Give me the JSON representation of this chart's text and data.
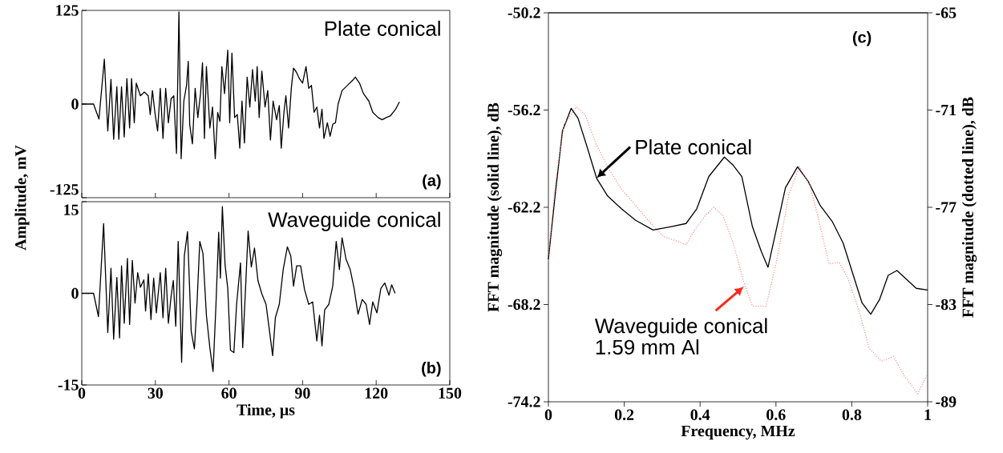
{
  "chart_data": [
    {
      "type": "line",
      "xlim": [
        0,
        150
      ],
      "xticks": [
        0,
        30,
        60,
        90,
        120,
        150
      ],
      "ylim": [
        -125,
        125
      ],
      "yticks": [
        -125,
        0,
        125
      ],
      "ylabel": "Amplitude, mV",
      "tick_labels": "y",
      "annotations": [
        "Plate conical",
        "(a)"
      ],
      "series": [
        {
          "color": "#000000",
          "x": [
            0,
            4.8,
            7.0,
            9.2,
            10.6,
            11.9,
            13.0,
            14.3,
            15.1,
            16.2,
            17.3,
            18.4,
            19.5,
            20.3,
            21.4,
            22.2,
            23.9,
            25.5,
            27.1,
            27.9,
            28.8,
            29.8,
            30.9,
            32.0,
            33.1,
            34.2,
            35.3,
            36.4,
            37.5,
            38.6,
            39.6,
            40.5,
            41.6,
            42.7,
            43.4,
            44.0,
            45.1,
            46.2,
            47.3,
            48.4,
            49.2,
            50.0,
            50.8,
            52.2,
            53.3,
            54.4,
            55.4,
            56.3,
            57.1,
            58.2,
            59.5,
            60.3,
            61.2,
            62.3,
            63.4,
            64.4,
            65.3,
            66.3,
            67.4,
            68.5,
            69.6,
            70.7,
            71.5,
            72.3,
            73.4,
            74.7,
            75.8,
            76.9,
            78.0,
            79.4,
            80.5,
            81.3,
            82.4,
            83.2,
            84.3,
            85.4,
            86.3,
            87.4,
            88.7,
            90.0,
            91.4,
            92.5,
            93.6,
            94.7,
            95.8,
            96.9,
            97.9,
            98.7,
            100.1,
            101.2,
            102.3,
            103.4,
            104.5,
            106.1,
            108.3,
            110.5,
            111.5,
            113.2,
            114.8,
            117.0,
            118.6,
            120.8,
            122.4,
            124.1,
            125.7,
            127.9,
            129.5
          ],
          "values": [
            0,
            0,
            -20,
            60,
            -36,
            33,
            -47,
            23,
            -47,
            23,
            -44,
            34,
            -32,
            34,
            -25,
            28,
            11,
            16,
            11,
            -14,
            18,
            -11,
            -36,
            21,
            -46,
            21,
            -25,
            7,
            11,
            -66,
            123,
            -73,
            4,
            25,
            57,
            -28,
            -53,
            21,
            -18,
            14,
            55,
            -46,
            50,
            -32,
            -4,
            -73,
            -11,
            -23,
            50,
            14,
            72,
            -25,
            68,
            -18,
            -14,
            -59,
            4,
            -52,
            36,
            -4,
            46,
            4,
            50,
            -18,
            44,
            -4,
            18,
            -48,
            4,
            -21,
            -2,
            -59,
            -11,
            11,
            -32,
            21,
            48,
            43,
            34,
            28,
            50,
            21,
            25,
            -11,
            -4,
            -32,
            -7,
            -46,
            -25,
            -43,
            -27,
            -25,
            0,
            18,
            25,
            32,
            36,
            28,
            14,
            4,
            -11,
            -18,
            -21,
            -18,
            -16,
            -7,
            3
          ]
        }
      ]
    },
    {
      "type": "line",
      "xlim": [
        0,
        150
      ],
      "xticks": [
        0,
        30,
        60,
        90,
        120,
        150
      ],
      "ylim": [
        -15,
        15
      ],
      "yticks": [
        -15,
        0,
        15
      ],
      "xlabel": "Time, μs",
      "annotations": [
        "Waveguide conical",
        "(b)"
      ],
      "series": [
        {
          "color": "#000000",
          "x": [
            0,
            4.8,
            6.8,
            8.9,
            10.6,
            11.9,
            13.0,
            14.3,
            15.4,
            16.2,
            17.3,
            18.6,
            19.5,
            20.6,
            21.7,
            22.8,
            23.9,
            25.3,
            26.0,
            27.1,
            28.2,
            29.3,
            30.4,
            32.0,
            33.1,
            34.2,
            35.3,
            36.4,
            37.3,
            38.3,
            39.3,
            40.7,
            41.8,
            43.1,
            44.6,
            45.9,
            47.0,
            48.1,
            49.4,
            50.8,
            52.2,
            53.5,
            54.7,
            55.8,
            56.5,
            57.3,
            58.4,
            59.5,
            60.6,
            62.0,
            63.1,
            64.7,
            65.6,
            66.9,
            67.8,
            69.1,
            70.4,
            71.8,
            73.4,
            75.1,
            76.1,
            77.8,
            78.9,
            80.5,
            82.1,
            83.8,
            85.2,
            86.3,
            87.6,
            89.2,
            90.8,
            92.5,
            94.1,
            95.8,
            96.9,
            97.9,
            99.0,
            100.7,
            102.3,
            103.7,
            105.0,
            106.1,
            107.7,
            109.4,
            111.0,
            112.6,
            114.3,
            115.9,
            117.3,
            118.6,
            120.3,
            121.9,
            123.5,
            125.2,
            126.3,
            127.7
          ],
          "values": [
            0,
            0,
            -3.8,
            11.4,
            -6.4,
            4.1,
            -7.5,
            2.6,
            -7.3,
            4.5,
            -4.9,
            5.7,
            -5.1,
            5.4,
            -1.6,
            3.4,
            1.0,
            2.2,
            -2.9,
            3.2,
            -4.3,
            2.5,
            -3.2,
            3.4,
            -4.0,
            4.1,
            -4.9,
            -0.5,
            2.1,
            -5.4,
            8.5,
            -11.3,
            6.1,
            10.1,
            -6.2,
            -9.1,
            -1.4,
            8.5,
            6.5,
            -3.6,
            -8.9,
            -12.8,
            -1.8,
            10.0,
            2.5,
            14.2,
            4.7,
            0.8,
            -9.3,
            -9.7,
            -1.8,
            5.0,
            -8.9,
            2.1,
            10.2,
            4.3,
            7.4,
            2.1,
            -0.1,
            -1.8,
            -4.9,
            -10.2,
            -4.0,
            -1.8,
            3.9,
            7.6,
            6.1,
            1.2,
            4.5,
            4.5,
            0.6,
            -1.8,
            -1.4,
            -7.8,
            -3.6,
            -8.6,
            -2.7,
            -1.8,
            1.2,
            8.5,
            3.9,
            9.1,
            5.6,
            3.9,
            0.8,
            -3.4,
            -1.0,
            -1.8,
            -5.1,
            -1.4,
            -3.2,
            0.8,
            1.7,
            -0.3,
            1.4,
            0.0
          ]
        }
      ]
    },
    {
      "type": "line",
      "xlim": [
        0,
        1
      ],
      "xticks": [
        0,
        0.2,
        0.4,
        0.6,
        0.8,
        1
      ],
      "ylim": [
        -74.2,
        -50.2
      ],
      "yticks": [
        -74.2,
        -68.2,
        -62.2,
        -56.2,
        -50.2
      ],
      "y2lim": [
        -89,
        -65
      ],
      "y2ticks": [
        -89,
        -83,
        -77,
        -71,
        -65
      ],
      "xlabel": "Frequency, MHz",
      "ylabel": "FFT magnitude (solid line), dB",
      "y2label": "FFT magnitude (dotted line), dB",
      "annotations": [
        "(c)",
        {
          "text": "Plate conical",
          "x": 0.127,
          "y": -60.4
        },
        {
          "text": "Waveguide conical",
          "x": 0.515,
          "y": -67.1
        },
        "1.59 mm Al"
      ],
      "series": [
        {
          "color": "#000000",
          "line_style": "solid",
          "x": [
            0,
            0.018,
            0.037,
            0.06,
            0.078,
            0.101,
            0.127,
            0.156,
            0.193,
            0.23,
            0.276,
            0.322,
            0.363,
            0.391,
            0.423,
            0.464,
            0.487,
            0.51,
            0.538,
            0.561,
            0.579,
            0.597,
            0.625,
            0.657,
            0.685,
            0.717,
            0.749,
            0.777,
            0.8,
            0.827,
            0.85,
            0.873,
            0.896,
            0.919,
            0.942,
            0.97,
            1.0
          ],
          "values": [
            -65.4,
            -61.4,
            -57.5,
            -56.1,
            -56.7,
            -58.4,
            -60.4,
            -61.5,
            -62.3,
            -63.0,
            -63.6,
            -63.4,
            -63.2,
            -62.3,
            -60.3,
            -59.1,
            -59.6,
            -60.3,
            -63.4,
            -64.9,
            -65.9,
            -64.0,
            -61.0,
            -59.7,
            -60.6,
            -62.1,
            -63.1,
            -64.4,
            -66.1,
            -68.1,
            -68.8,
            -67.9,
            -66.4,
            -66.1,
            -66.6,
            -67.2,
            -67.3
          ]
        },
        {
          "color": "#f07878",
          "line_style": "dotted",
          "axis": "y2",
          "x": [
            0,
            0.018,
            0.041,
            0.074,
            0.097,
            0.124,
            0.156,
            0.193,
            0.23,
            0.267,
            0.303,
            0.34,
            0.363,
            0.386,
            0.414,
            0.436,
            0.46,
            0.487,
            0.515,
            0.538,
            0.574,
            0.602,
            0.634,
            0.662,
            0.689,
            0.712,
            0.74,
            0.767,
            0.79,
            0.818,
            0.846,
            0.878,
            0.91,
            0.938,
            0.974,
            0.997
          ],
          "values": [
            -80.1,
            -75.6,
            -71.9,
            -70.8,
            -71.3,
            -73.0,
            -74.5,
            -75.9,
            -76.9,
            -77.9,
            -78.8,
            -79.1,
            -79.3,
            -78.4,
            -77.5,
            -77.0,
            -77.5,
            -79.2,
            -81.6,
            -83.1,
            -83.1,
            -80.3,
            -76.2,
            -74.5,
            -75.6,
            -77.7,
            -80.5,
            -80.4,
            -81.4,
            -83.3,
            -85.7,
            -86.5,
            -86.2,
            -87.4,
            -88.5,
            -87.4
          ]
        }
      ]
    }
  ]
}
